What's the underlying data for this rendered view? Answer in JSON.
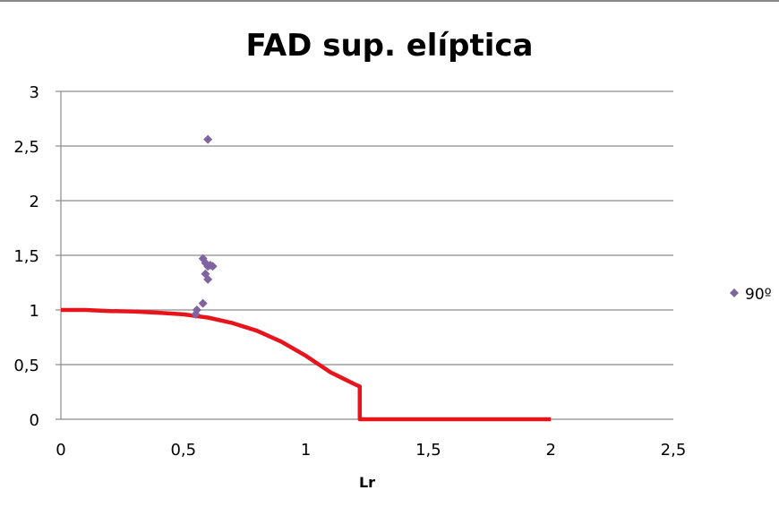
{
  "chart_data": {
    "type": "scatter",
    "title": "FAD sup. elíptica",
    "xlabel": "Lr",
    "ylabel": "",
    "xlim": [
      0,
      2.5
    ],
    "ylim": [
      0,
      3
    ],
    "x_ticks": [
      0,
      0.5,
      1,
      1.5,
      2,
      2.5
    ],
    "x_tick_labels": [
      "0",
      "0,5",
      "1",
      "1,5",
      "2",
      "2,5"
    ],
    "y_ticks": [
      0,
      0.5,
      1,
      1.5,
      2,
      2.5,
      3
    ],
    "y_tick_labels": [
      "0",
      "0,5",
      "1",
      "1,5",
      "2",
      "2,5",
      "3"
    ],
    "grid": "horizontal",
    "legend": "right",
    "series": [
      {
        "name": "90º",
        "kind": "scatter",
        "color": "#8064A2",
        "points": [
          [
            0.6,
            2.56
          ],
          [
            0.58,
            1.47
          ],
          [
            0.59,
            1.43
          ],
          [
            0.6,
            1.4
          ],
          [
            0.61,
            1.41
          ],
          [
            0.62,
            1.4
          ],
          [
            0.59,
            1.33
          ],
          [
            0.6,
            1.28
          ],
          [
            0.58,
            1.06
          ],
          [
            0.555,
            1.0
          ],
          [
            0.55,
            0.96
          ]
        ]
      },
      {
        "kind": "line",
        "color": "#E8141B",
        "points": [
          [
            0,
            1.0
          ],
          [
            0.1,
            1.0
          ],
          [
            0.2,
            0.99
          ],
          [
            0.3,
            0.985
          ],
          [
            0.4,
            0.975
          ],
          [
            0.5,
            0.96
          ],
          [
            0.6,
            0.93
          ],
          [
            0.7,
            0.88
          ],
          [
            0.8,
            0.81
          ],
          [
            0.9,
            0.71
          ],
          [
            1.0,
            0.58
          ],
          [
            1.1,
            0.43
          ],
          [
            1.2,
            0.32
          ],
          [
            1.22,
            0.3
          ],
          [
            1.22,
            0
          ],
          [
            2.0,
            0
          ]
        ]
      }
    ]
  }
}
